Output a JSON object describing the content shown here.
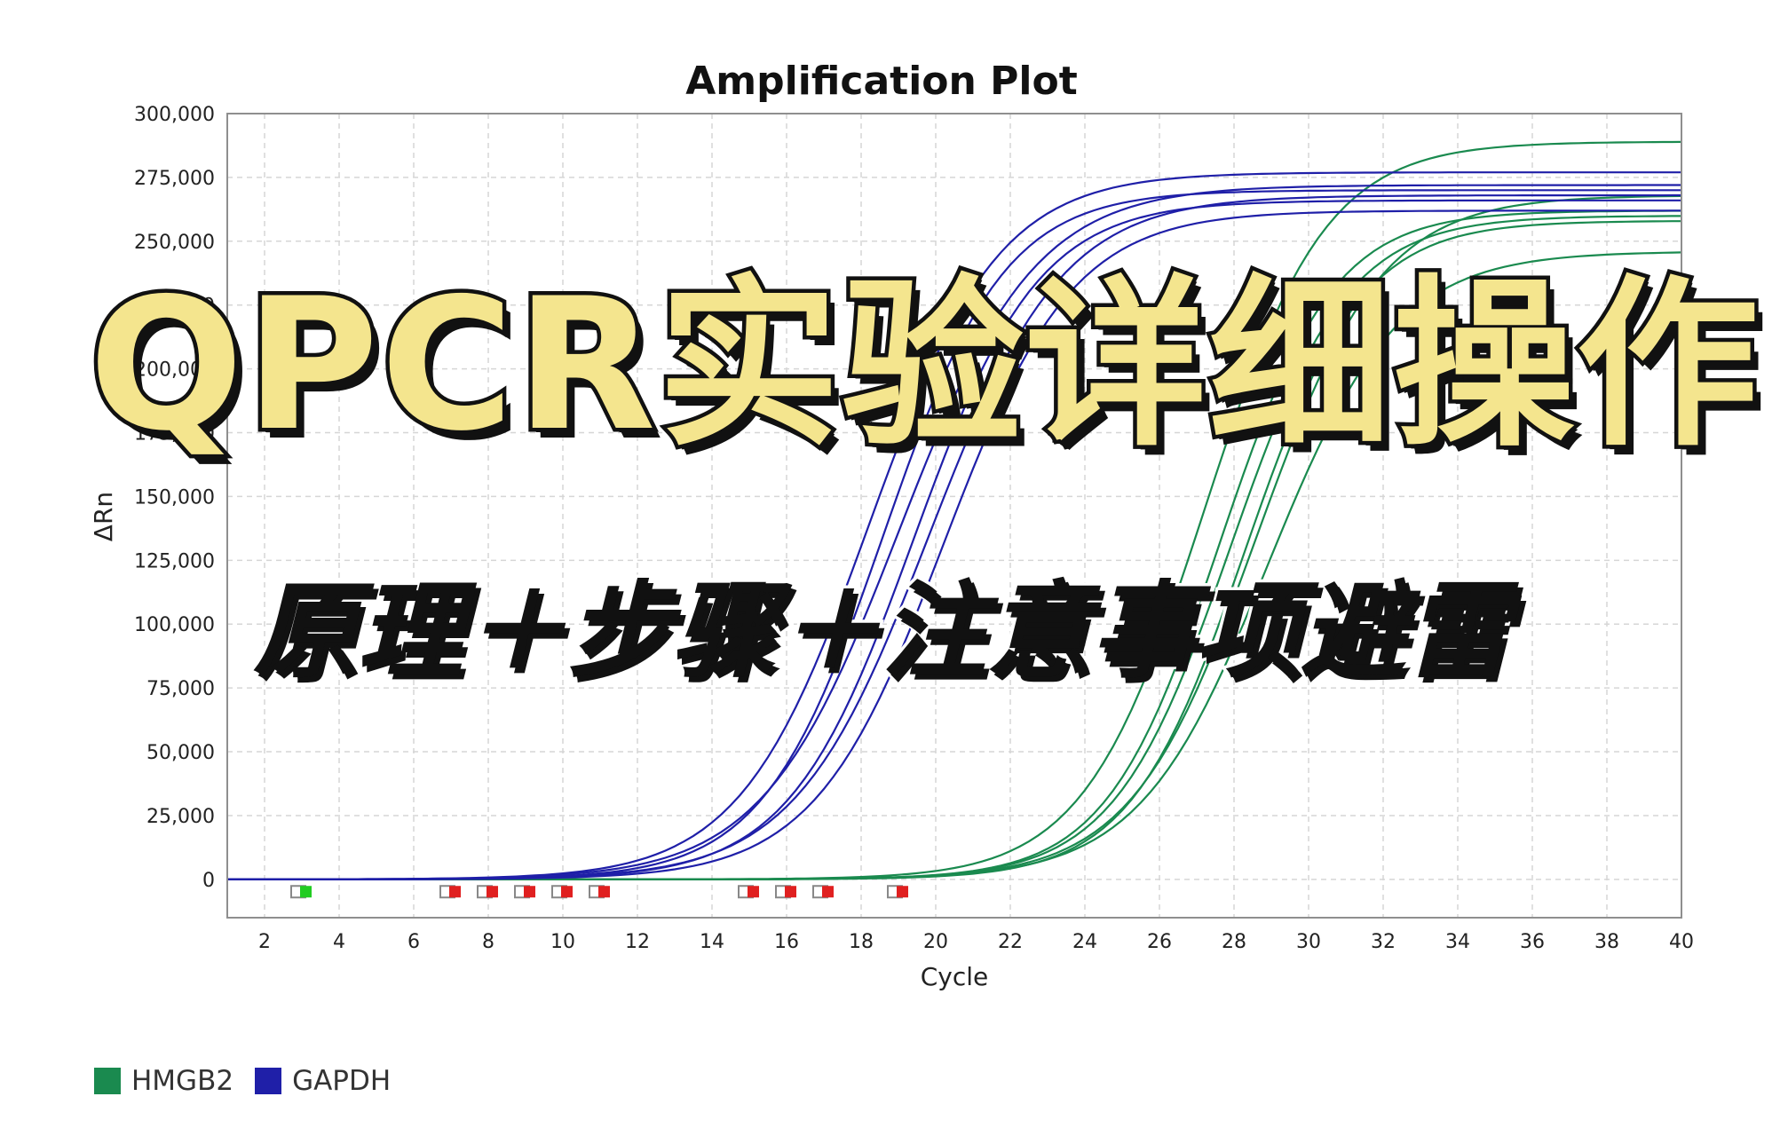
{
  "overlay": {
    "headline": "QPCR实验详细操作",
    "subline": "原理＋步骤＋注意事项避雷",
    "headline_color": "#f4e58e"
  },
  "chart_data": {
    "type": "line",
    "title": "Amplification Plot",
    "xlabel": "Cycle",
    "ylabel": "ΔRn",
    "xlim": [
      1,
      40
    ],
    "ylim": [
      -15000,
      300000
    ],
    "xticks": [
      2,
      4,
      6,
      8,
      10,
      12,
      14,
      16,
      18,
      20,
      22,
      24,
      26,
      28,
      30,
      32,
      34,
      36,
      38,
      40
    ],
    "yticks": [
      0,
      25000,
      50000,
      75000,
      100000,
      125000,
      150000,
      175000,
      200000,
      225000,
      250000,
      275000,
      300000
    ],
    "ytick_labels": [
      "0",
      "25,000",
      "50,000",
      "75,000",
      "100,000",
      "125,000",
      "150,000",
      "175,000",
      "200,000",
      "225,000",
      "250,000",
      "275,000",
      "300,000"
    ],
    "grid": true,
    "legend_position": "bottom-left",
    "groups": [
      {
        "name": "HMGB2",
        "color": "#1a8a4f",
        "series": [
          {
            "plateau": 289000,
            "midpoint": 27.2,
            "slope": 0.62
          },
          {
            "plateau": 262000,
            "midpoint": 27.6,
            "slope": 0.66
          },
          {
            "plateau": 260000,
            "midpoint": 27.9,
            "slope": 0.64
          },
          {
            "plateau": 258000,
            "midpoint": 28.3,
            "slope": 0.65
          },
          {
            "plateau": 268000,
            "midpoint": 28.6,
            "slope": 0.6
          },
          {
            "plateau": 246000,
            "midpoint": 28.9,
            "slope": 0.58
          }
        ]
      },
      {
        "name": "GAPDH",
        "color": "#1f1fa8",
        "series": [
          {
            "plateau": 277000,
            "midpoint": 18.2,
            "slope": 0.58
          },
          {
            "plateau": 270000,
            "midpoint": 18.6,
            "slope": 0.62
          },
          {
            "plateau": 272000,
            "midpoint": 19.0,
            "slope": 0.55
          },
          {
            "plateau": 266000,
            "midpoint": 19.4,
            "slope": 0.6
          },
          {
            "plateau": 268000,
            "midpoint": 19.8,
            "slope": 0.56
          },
          {
            "plateau": 262000,
            "midpoint": 20.2,
            "slope": 0.58
          }
        ]
      }
    ],
    "threshold_markers": [
      {
        "x": 3,
        "color": "#22cc22"
      },
      {
        "x": 7,
        "color": "#e02020"
      },
      {
        "x": 8,
        "color": "#e02020"
      },
      {
        "x": 9,
        "color": "#e02020"
      },
      {
        "x": 10,
        "color": "#e02020"
      },
      {
        "x": 11,
        "color": "#e02020"
      },
      {
        "x": 15,
        "color": "#e02020"
      },
      {
        "x": 16,
        "color": "#e02020"
      },
      {
        "x": 17,
        "color": "#e02020"
      },
      {
        "x": 19,
        "color": "#e02020"
      }
    ]
  },
  "legend": {
    "items": [
      {
        "label": "HMGB2",
        "color": "#1a8a4f"
      },
      {
        "label": "GAPDH",
        "color": "#1f1fa8"
      }
    ]
  }
}
